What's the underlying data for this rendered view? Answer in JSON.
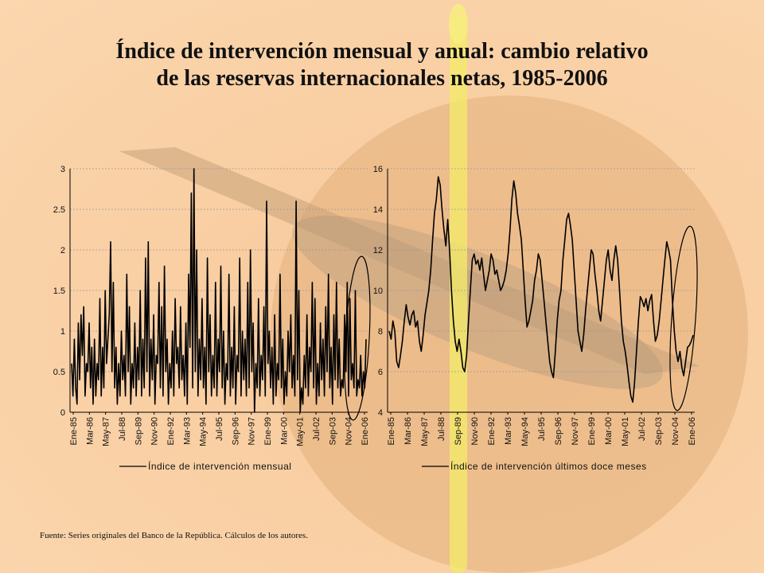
{
  "title_line1": "Índice de intervención mensual y anual: cambio relativo",
  "title_line2": "de las reservas internacionales netas, 1985-2006",
  "source": "Fuente: Series originales del Banco de la República. Cálculos de los autores.",
  "chart_data": [
    {
      "type": "line",
      "title": "",
      "legend": "Índice de intervención mensual",
      "legend_position": "bottom",
      "grid": true,
      "ylim": [
        0,
        3
      ],
      "yticks": [
        "0",
        "0.5",
        "1",
        "1.5",
        "2",
        "2.5",
        "3"
      ],
      "xticks": [
        "Ene-85",
        "Mar-86",
        "May-87",
        "Jul-88",
        "Sep-89",
        "Nov-90",
        "Ene-92",
        "Mar-93",
        "May-94",
        "Jul-95",
        "Sep-96",
        "Nov-97",
        "Ene-99",
        "Mar-00",
        "May-01",
        "Jul-02",
        "Sep-03",
        "Nov-04",
        "Ene-06"
      ],
      "series": [
        {
          "name": "Índice de intervención mensual",
          "values": [
            0.6,
            0.2,
            0.9,
            0.3,
            0.1,
            1.1,
            0.4,
            1.2,
            0.7,
            1.3,
            0.2,
            0.6,
            0.5,
            1.1,
            0.3,
            0.8,
            0.1,
            0.9,
            0.2,
            0.6,
            0.4,
            1.4,
            0.2,
            0.8,
            0.3,
            1.5,
            0.6,
            0.9,
            1.2,
            2.1,
            0.5,
            1.6,
            0.3,
            0.8,
            0.1,
            0.6,
            0.2,
            1.0,
            0.4,
            0.7,
            0.2,
            1.7,
            0.5,
            1.3,
            0.1,
            0.6,
            0.3,
            1.1,
            0.2,
            0.8,
            0.4,
            1.5,
            0.2,
            0.9,
            0.3,
            1.9,
            0.5,
            2.1,
            0.2,
            0.9,
            0.4,
            1.2,
            0.1,
            0.7,
            0.6,
            1.6,
            0.3,
            1.3,
            0.2,
            1.8,
            0.5,
            0.9,
            0.1,
            0.6,
            0.3,
            1.0,
            0.2,
            1.4,
            0.6,
            0.8,
            0.3,
            1.3,
            0.4,
            0.7,
            0.2,
            1.1,
            0.1,
            1.7,
            0.8,
            2.7,
            0.3,
            3.0,
            0.5,
            2.0,
            0.2,
            0.9,
            0.4,
            1.4,
            0.3,
            0.8,
            0.1,
            1.9,
            0.5,
            1.2,
            0.2,
            0.7,
            0.3,
            1.6,
            0.2,
            0.9,
            0.5,
            1.8,
            0.3,
            1.0,
            0.1,
            0.6,
            0.4,
            1.7,
            0.2,
            0.8,
            0.3,
            1.3,
            0.1,
            0.7,
            0.5,
            1.9,
            0.2,
            1.0,
            0.4,
            0.9,
            0.2,
            1.6,
            0.3,
            2.0,
            0.5,
            1.1,
            0.0,
            0.6,
            0.3,
            1.4,
            0.2,
            0.7,
            0.4,
            1.3,
            0.2,
            2.6,
            0.6,
            1.0,
            0.3,
            0.8,
            0.1,
            1.2,
            0.2,
            0.6,
            0.4,
            1.7,
            0.3,
            0.9,
            0.1,
            0.5,
            0.2,
            1.0,
            0.5,
            1.2,
            0.3,
            0.7,
            0.2,
            2.6,
            0.4,
            1.5,
            0.0,
            0.3,
            0.1,
            0.7,
            0.3,
            1.2,
            0.2,
            0.8,
            0.5,
            1.6,
            0.3,
            1.4,
            0.1,
            0.6,
            0.2,
            1.1,
            0.4,
            0.9,
            0.2,
            1.3,
            0.5,
            1.7,
            0.3,
            0.8,
            0.1,
            1.2,
            0.4,
            1.6,
            0.3,
            0.9,
            0.2,
            0.4,
            0.3,
            1.2,
            0.5,
            1.6,
            0.2,
            1.4,
            0.4,
            0.6,
            0.3,
            1.5,
            0.2,
            0.4,
            0.3,
            0.7,
            0.2,
            0.5,
            0.3,
            0.9
          ]
        }
      ]
    },
    {
      "type": "line",
      "title": "",
      "legend": "Índice de intervención últimos doce meses",
      "legend_position": "bottom",
      "grid": true,
      "ylim": [
        4,
        16
      ],
      "yticks": [
        "4",
        "6",
        "8",
        "10",
        "12",
        "14",
        "16"
      ],
      "xticks": [
        "Ene-85",
        "Mar-86",
        "May-87",
        "Jul-88",
        "Sep-89",
        "Nov-90",
        "Ene-92",
        "Mar-93",
        "May-94",
        "Jul-95",
        "Sep-96",
        "Nov-97",
        "Ene-99",
        "Mar-00",
        "May-01",
        "Jul-02",
        "Sep-03",
        "Nov-04",
        "Ene-06"
      ],
      "series": [
        {
          "name": "Índice de intervención últimos doce meses",
          "values": [
            8.0,
            7.6,
            8.5,
            8.0,
            6.5,
            6.2,
            6.8,
            7.5,
            8.5,
            9.3,
            8.7,
            8.3,
            8.8,
            9.0,
            8.2,
            8.5,
            7.5,
            7.0,
            7.8,
            8.8,
            9.4,
            10.0,
            11.0,
            12.5,
            13.8,
            14.5,
            15.6,
            15.2,
            14.0,
            13.0,
            12.2,
            13.5,
            12.0,
            10.0,
            8.5,
            7.5,
            7.0,
            7.6,
            7.0,
            6.2,
            6.0,
            6.8,
            8.5,
            10.0,
            11.5,
            11.8,
            11.3,
            11.5,
            11.0,
            11.6,
            10.8,
            10.0,
            10.5,
            11.0,
            11.8,
            11.5,
            10.8,
            11.0,
            10.5,
            10.0,
            10.2,
            10.5,
            11.0,
            11.8,
            13.0,
            14.5,
            15.4,
            14.8,
            13.8,
            13.2,
            12.5,
            11.0,
            9.5,
            8.2,
            8.5,
            9.0,
            9.5,
            10.5,
            11.0,
            11.8,
            11.5,
            10.5,
            9.5,
            8.5,
            7.5,
            6.5,
            6.0,
            5.7,
            7.0,
            8.5,
            9.5,
            10.0,
            11.5,
            12.5,
            13.5,
            13.8,
            13.2,
            12.5,
            11.0,
            9.5,
            8.0,
            7.5,
            7.0,
            7.8,
            9.0,
            10.0,
            11.0,
            12.0,
            11.8,
            10.8,
            10.0,
            9.0,
            8.5,
            9.5,
            10.5,
            11.5,
            12.0,
            11.0,
            10.5,
            11.5,
            12.2,
            11.5,
            10.0,
            8.5,
            7.5,
            7.0,
            6.3,
            5.5,
            4.8,
            4.5,
            5.5,
            7.0,
            8.5,
            9.7,
            9.5,
            9.2,
            9.6,
            9.0,
            9.5,
            9.8,
            8.5,
            7.5,
            7.8,
            8.5,
            9.5,
            10.5,
            11.5,
            12.4,
            12.0,
            11.5,
            9.5,
            8.0,
            7.0,
            6.5,
            7.0,
            6.2,
            5.8,
            6.5,
            7.2,
            7.3,
            7.5,
            7.8
          ]
        }
      ]
    }
  ]
}
